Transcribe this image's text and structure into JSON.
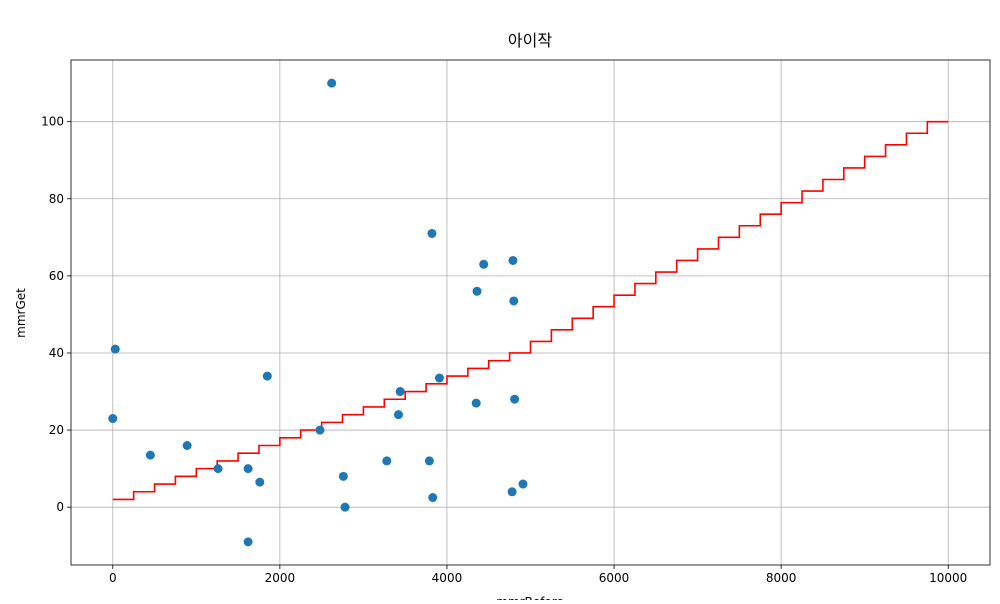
{
  "chart_data": {
    "type": "scatter",
    "title": "아이작",
    "xlabel": "mmrBefore",
    "ylabel": "mmrGet",
    "xlim": [
      -500,
      10500
    ],
    "ylim": [
      -15,
      116
    ],
    "xticks": [
      0,
      2000,
      4000,
      6000,
      8000,
      10000
    ],
    "yticks": [
      0,
      20,
      40,
      60,
      80,
      100
    ],
    "grid": true,
    "colors": {
      "scatter": "#1f77b4",
      "step_line": "#ff0000"
    },
    "series": [
      {
        "type": "scatter",
        "points": [
          {
            "x": 2620,
            "y": 110
          },
          {
            "x": 30,
            "y": 41
          },
          {
            "x": 0,
            "y": 23
          },
          {
            "x": 450,
            "y": 13.5
          },
          {
            "x": 890,
            "y": 16
          },
          {
            "x": 1260,
            "y": 10
          },
          {
            "x": 1620,
            "y": 10
          },
          {
            "x": 1620,
            "y": -9
          },
          {
            "x": 1760,
            "y": 6.5
          },
          {
            "x": 1850,
            "y": 34
          },
          {
            "x": 2480,
            "y": 20
          },
          {
            "x": 2760,
            "y": 8
          },
          {
            "x": 2780,
            "y": 0
          },
          {
            "x": 3280,
            "y": 12
          },
          {
            "x": 3420,
            "y": 24
          },
          {
            "x": 3440,
            "y": 30
          },
          {
            "x": 3790,
            "y": 12
          },
          {
            "x": 3820,
            "y": 71
          },
          {
            "x": 3830,
            "y": 2.5
          },
          {
            "x": 3910,
            "y": 33.5
          },
          {
            "x": 4350,
            "y": 27
          },
          {
            "x": 4360,
            "y": 56
          },
          {
            "x": 4440,
            "y": 63
          },
          {
            "x": 4780,
            "y": 4
          },
          {
            "x": 4790,
            "y": 64
          },
          {
            "x": 4800,
            "y": 53.5
          },
          {
            "x": 4810,
            "y": 28
          },
          {
            "x": 4910,
            "y": 6
          }
        ]
      },
      {
        "type": "step",
        "step_width": 250,
        "x_start": 0,
        "x_end": 10000,
        "y_values": [
          2,
          4,
          6,
          8,
          10,
          12,
          14,
          16,
          18,
          20,
          22,
          24,
          26,
          28,
          30,
          32,
          34,
          36,
          38,
          40,
          43,
          46,
          49,
          52,
          55,
          58,
          61,
          64,
          67,
          70,
          73,
          76,
          79,
          82,
          85,
          88,
          91,
          94,
          97,
          100
        ]
      }
    ]
  }
}
